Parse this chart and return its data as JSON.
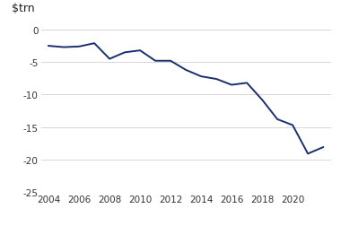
{
  "years": [
    2004,
    2005,
    2006,
    2007,
    2008,
    2009,
    2010,
    2011,
    2012,
    2013,
    2014,
    2015,
    2016,
    2017,
    2018,
    2019,
    2020,
    2021,
    2022
  ],
  "values": [
    -2.5,
    -2.7,
    -2.6,
    -2.1,
    -4.5,
    -3.5,
    -3.2,
    -4.8,
    -4.8,
    -6.2,
    -7.2,
    -7.6,
    -8.5,
    -8.2,
    -10.8,
    -13.8,
    -14.7,
    -19.1,
    -18.1
  ],
  "line_color": "#1b2f6e",
  "line_width": 1.4,
  "ylabel": "$trn",
  "ylim": [
    -25,
    0.5
  ],
  "yticks": [
    0,
    -5,
    -10,
    -15,
    -20,
    -25
  ],
  "ytick_labels": [
    "0",
    "-5",
    "-10",
    "-15",
    "-20",
    "-25"
  ],
  "xlim": [
    2003.5,
    2022.5
  ],
  "xticks": [
    2004,
    2006,
    2008,
    2010,
    2012,
    2014,
    2016,
    2018,
    2020
  ],
  "background_color": "#ffffff",
  "grid_color": "#d0d0d0",
  "tick_fontsize": 7.5,
  "ylabel_fontsize": 9
}
